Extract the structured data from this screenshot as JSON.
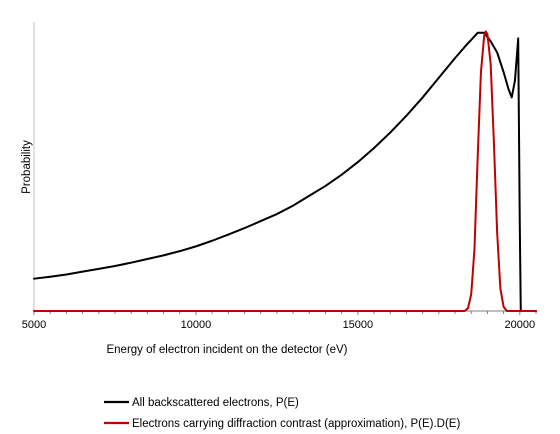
{
  "chart_data": {
    "type": "line",
    "title": "",
    "xlabel": "Energy of electron incident on the detector (eV)",
    "ylabel": "Probability",
    "xlim": [
      5000,
      20500
    ],
    "ylim": [
      0,
      1.0
    ],
    "x_ticks": [
      "5000",
      "10000",
      "15000",
      "20000"
    ],
    "x_tick_values": [
      5000,
      10000,
      15000,
      20000
    ],
    "grid": false,
    "legend_position": "bottom-left",
    "series": [
      {
        "name": "All backscattered electrons, P(E)",
        "color": "#000000",
        "points": [
          [
            5000,
            0.115
          ],
          [
            5500,
            0.122
          ],
          [
            6000,
            0.13
          ],
          [
            6500,
            0.14
          ],
          [
            7000,
            0.15
          ],
          [
            7500,
            0.16
          ],
          [
            8000,
            0.172
          ],
          [
            8500,
            0.185
          ],
          [
            9000,
            0.198
          ],
          [
            9500,
            0.213
          ],
          [
            10000,
            0.23
          ],
          [
            10500,
            0.25
          ],
          [
            11000,
            0.272
          ],
          [
            11500,
            0.295
          ],
          [
            12000,
            0.32
          ],
          [
            12500,
            0.345
          ],
          [
            13000,
            0.375
          ],
          [
            13500,
            0.41
          ],
          [
            14000,
            0.445
          ],
          [
            14500,
            0.485
          ],
          [
            15000,
            0.53
          ],
          [
            15500,
            0.58
          ],
          [
            16000,
            0.635
          ],
          [
            16500,
            0.695
          ],
          [
            17000,
            0.76
          ],
          [
            17500,
            0.83
          ],
          [
            18000,
            0.9
          ],
          [
            18300,
            0.94
          ],
          [
            18500,
            0.965
          ],
          [
            18700,
            0.99
          ],
          [
            18900,
            0.99
          ],
          [
            19100,
            0.96
          ],
          [
            19300,
            0.92
          ],
          [
            19500,
            0.85
          ],
          [
            19650,
            0.79
          ],
          [
            19750,
            0.76
          ],
          [
            19850,
            0.82
          ],
          [
            19950,
            0.97
          ],
          [
            20000,
            0.3
          ],
          [
            20030,
            0.0
          ],
          [
            20500,
            0.0
          ]
        ]
      },
      {
        "name": "Electrons carrying diffraction contrast (approximation), P(E).D(E)",
        "color": "#c00000",
        "points": [
          [
            5000,
            0.0
          ],
          [
            18300,
            0.0
          ],
          [
            18400,
            0.01
          ],
          [
            18500,
            0.06
          ],
          [
            18600,
            0.22
          ],
          [
            18700,
            0.55
          ],
          [
            18800,
            0.85
          ],
          [
            18900,
            0.98
          ],
          [
            18950,
            0.995
          ],
          [
            19000,
            0.985
          ],
          [
            19100,
            0.88
          ],
          [
            19200,
            0.6
          ],
          [
            19300,
            0.28
          ],
          [
            19400,
            0.08
          ],
          [
            19500,
            0.015
          ],
          [
            19600,
            0.0
          ],
          [
            20500,
            0.0
          ]
        ]
      }
    ]
  }
}
